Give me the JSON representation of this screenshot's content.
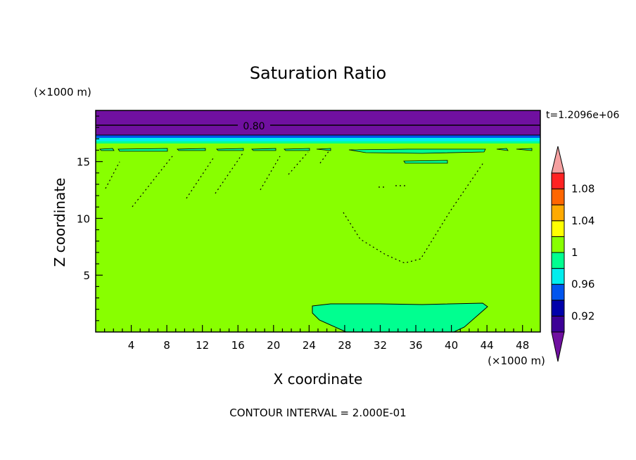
{
  "chart_data": {
    "type": "heatmap",
    "title": "Saturation Ratio",
    "xlabel": "X coordinate",
    "ylabel": "Z coordinate",
    "x_unit": "(×1000 m)",
    "y_unit": "(×1000 m)",
    "time_label": "t=1.2096e+06",
    "footer": "CONTOUR INTERVAL = 2.000E-01",
    "xlim": [
      0,
      50
    ],
    "ylim": [
      0,
      19.5
    ],
    "x_ticks": [
      4,
      8,
      12,
      16,
      20,
      24,
      28,
      32,
      36,
      40,
      44,
      48
    ],
    "y_ticks": [
      5,
      10,
      15
    ],
    "contour_label": "0.80",
    "contour_label_level": 0.8,
    "colorbar": {
      "levels": [
        0.9,
        0.92,
        0.94,
        0.96,
        0.98,
        1.0,
        1.02,
        1.04,
        1.06,
        1.08,
        1.1
      ],
      "labels": [
        "0.92",
        "0.96",
        "1",
        "1.04",
        "1.08"
      ],
      "label_levels": [
        0.92,
        0.96,
        1.0,
        1.04,
        1.08
      ],
      "colors": [
        "#3c0096",
        "#0000aa",
        "#0055ee",
        "#00eeee",
        "#00ff90",
        "#88ff00",
        "#ffff00",
        "#ffaa00",
        "#ff6600",
        "#ff2222"
      ],
      "under_color": "#7010a0",
      "over_color": "#f5a0a0"
    },
    "regions": [
      {
        "name": "background",
        "value": "1.00–1.02",
        "color": "#88ff00"
      },
      {
        "name": "top-layer",
        "z_range": [
          17.7,
          19.5
        ],
        "value": "< 0.90",
        "color": "#7010a0"
      },
      {
        "name": "tropopause-band",
        "z_range": [
          17.1,
          17.7
        ],
        "value": "0.96–1.00",
        "color": "#00eeee"
      },
      {
        "name": "lower-cloud",
        "x_range": [
          24.5,
          44.5
        ],
        "z_range": [
          0,
          2.7
        ],
        "value": "0.98–1.00",
        "color": "#00ff90"
      }
    ]
  }
}
